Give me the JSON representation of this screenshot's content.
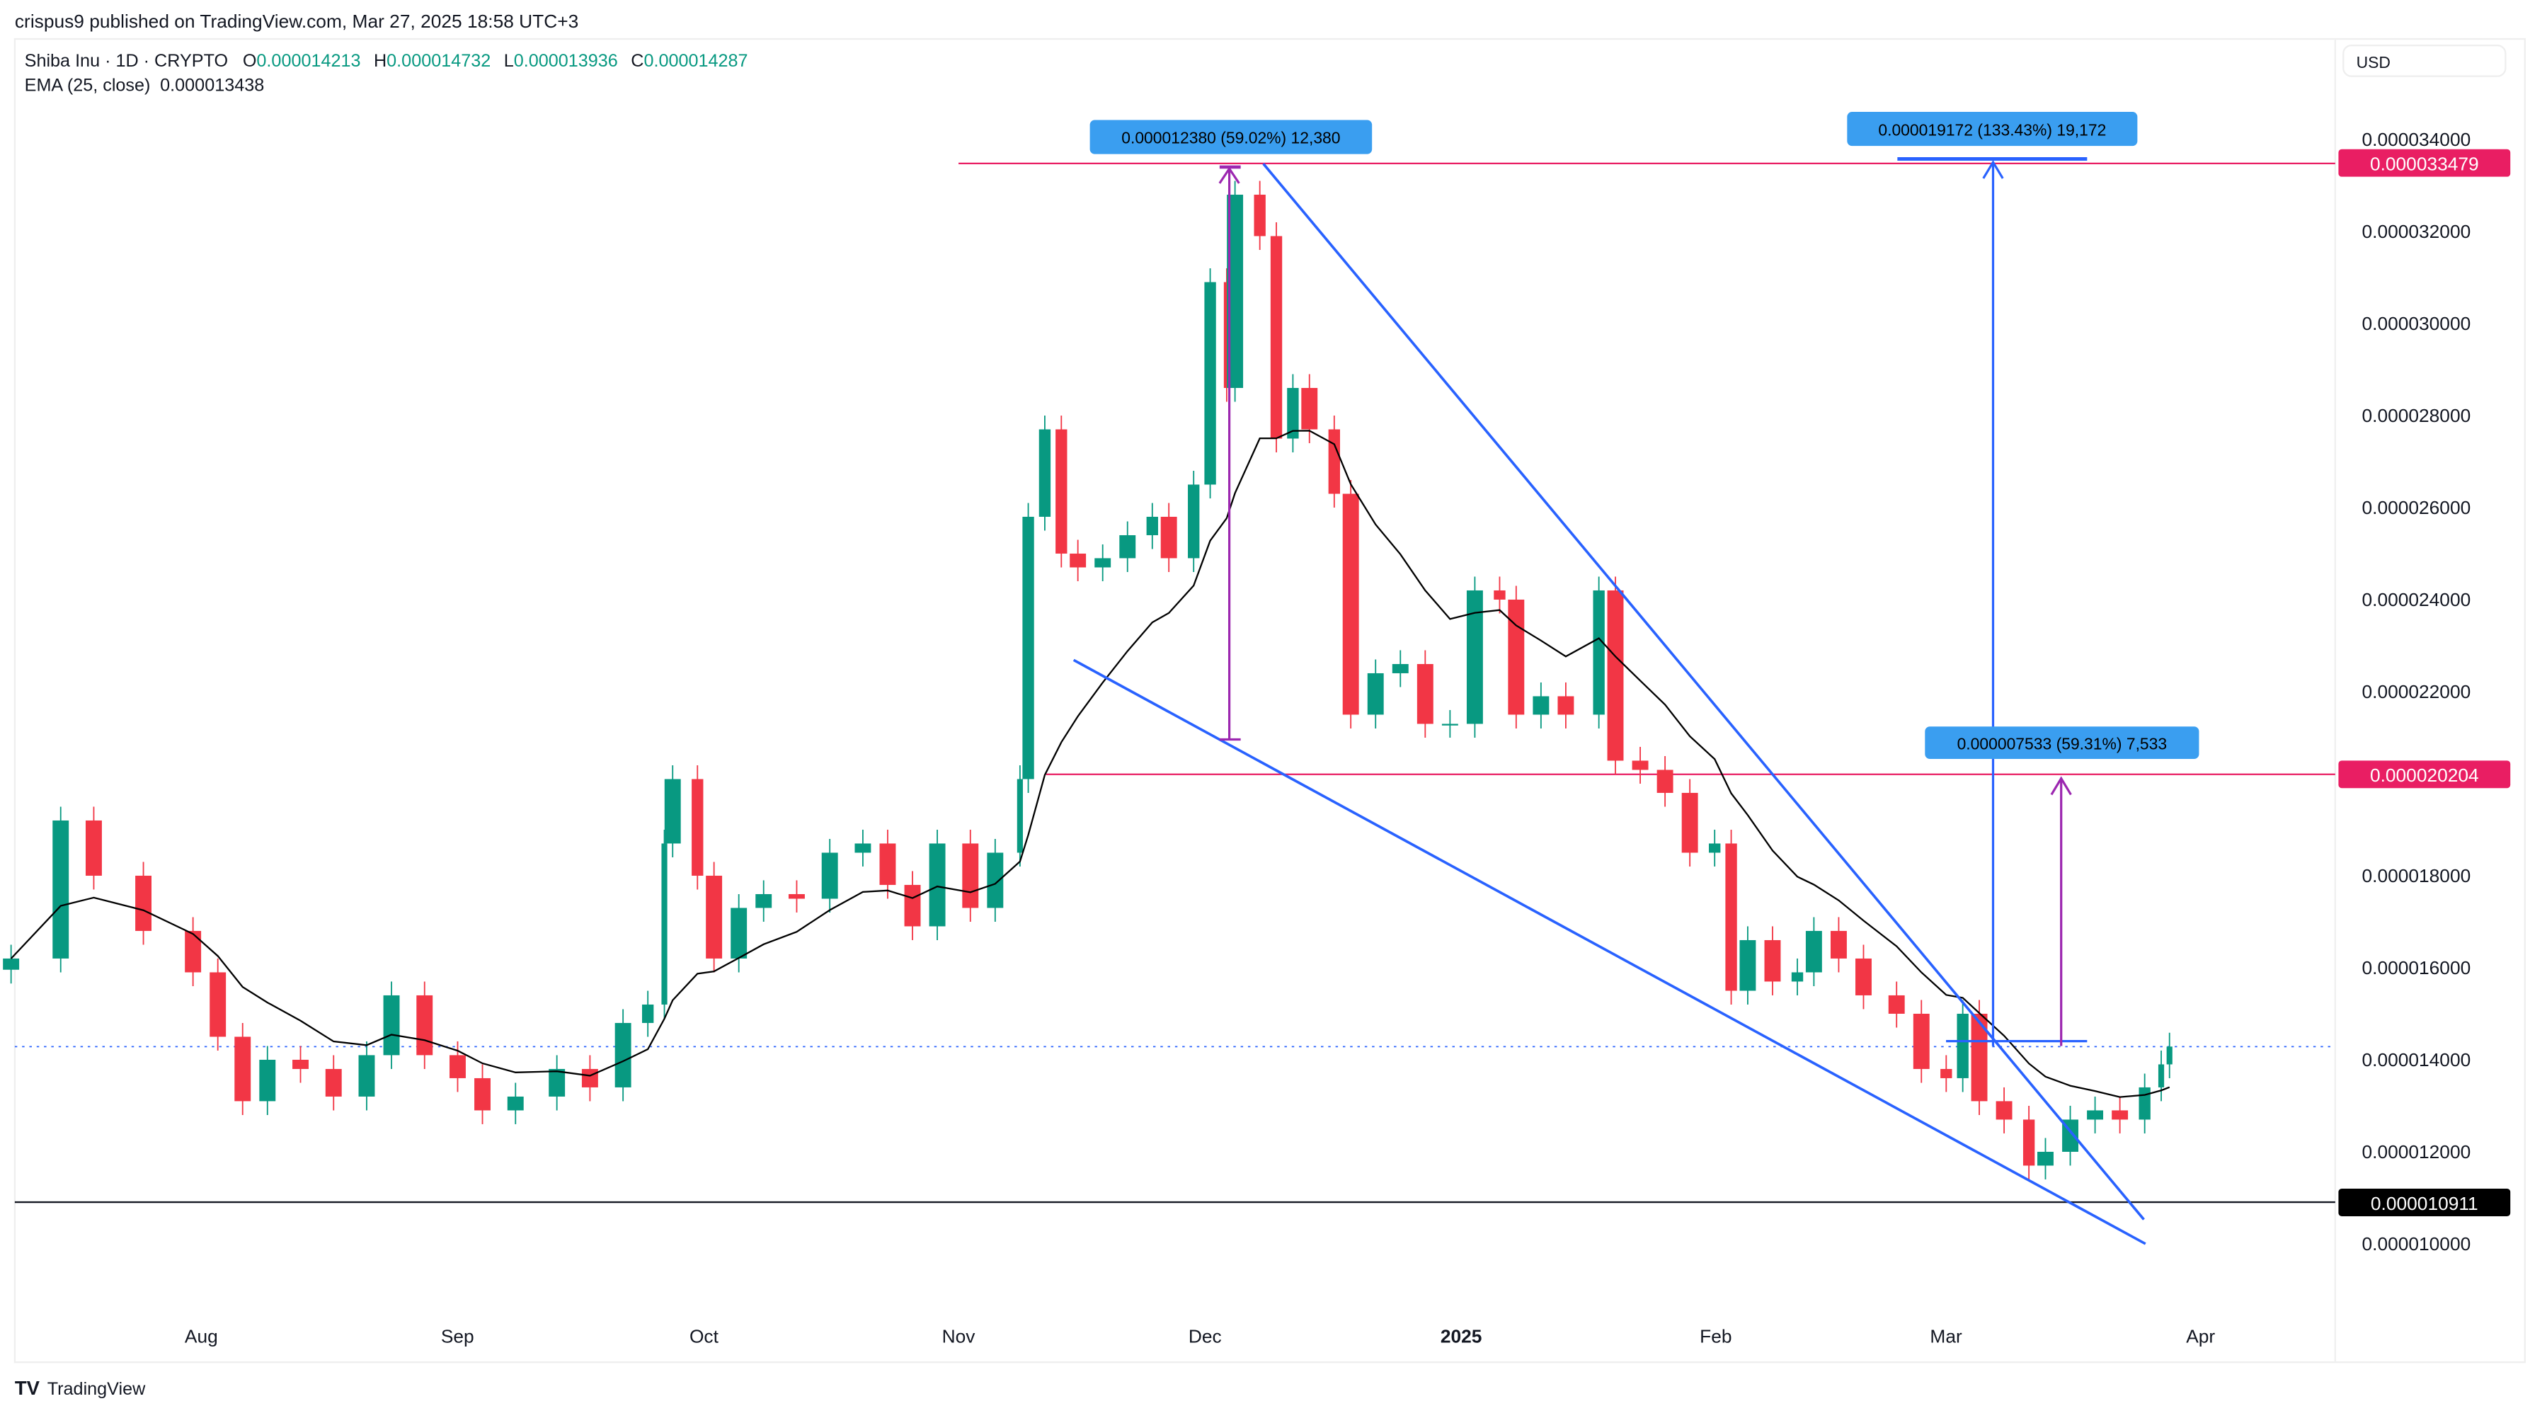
{
  "header": {
    "publisher_line": "crispus9 published on TradingView.com, Mar 27, 2025 18:58 UTC+3"
  },
  "legend": {
    "symbol": "Shiba Inu · 1D · CRYPTO",
    "open_label": "O",
    "open": "0.000014213",
    "high_label": "H",
    "high": "0.000014732",
    "low_label": "L",
    "low": "0.000013936",
    "close_label": "C",
    "close": "0.000014287",
    "ema_label": "EMA (25, close)",
    "ema_value": "0.000013438"
  },
  "currency_button": "USD",
  "footer": {
    "logo_text": "TradingView"
  },
  "colors": {
    "up": "#089981",
    "down": "#f23645",
    "level": "#e91e63",
    "trendline": "#2962ff",
    "measure_purple": "#9c27b0",
    "measure_label_bg": "#3a9ef0",
    "ema": "#000000"
  },
  "annotations": {
    "measure_1": "0.000012380 (59.02%) 12,380",
    "measure_2": "0.000019172 (133.43%) 19,172",
    "measure_3": "0.000007533 (59.31%) 7,533",
    "level_high": "0.000033479",
    "level_mid": "0.000020204",
    "level_low": "0.000010911"
  },
  "chart_data": {
    "type": "candlestick",
    "title": "Shiba Inu · 1D · CRYPTO",
    "ylabel": "USD",
    "ylim": [
      9.5e-06,
      3.47e-05
    ],
    "y_ticks": [
      "0.000034000",
      "0.000032000",
      "0.000030000",
      "0.000028000",
      "0.000026000",
      "0.000024000",
      "0.000022000",
      "0.000018000",
      "0.000016000",
      "0.000014000",
      "0.000012000",
      "0.000010000"
    ],
    "x_ticks": [
      "Aug",
      "Sep",
      "Oct",
      "Nov",
      "Dec",
      "2025",
      "Feb",
      "Mar",
      "Apr"
    ],
    "indicator": "EMA (25, close)",
    "horizontal_levels": [
      3.3479e-05,
      2.0204e-05,
      1.0911e-05
    ],
    "current_price": 1.4287e-05,
    "closes_e6": [
      [
        "2024-07-09",
        16.2
      ],
      [
        "2024-07-15",
        19.2
      ],
      [
        "2024-07-19",
        18.0
      ],
      [
        "2024-07-25",
        16.8
      ],
      [
        "2024-07-31",
        15.9
      ],
      [
        "2024-08-03",
        14.5
      ],
      [
        "2024-08-06",
        13.1
      ],
      [
        "2024-08-09",
        14.0
      ],
      [
        "2024-08-13",
        13.8
      ],
      [
        "2024-08-17",
        13.2
      ],
      [
        "2024-08-21",
        14.1
      ],
      [
        "2024-08-24",
        15.4
      ],
      [
        "2024-08-28",
        14.1
      ],
      [
        "2024-09-01",
        13.6
      ],
      [
        "2024-09-04",
        12.9
      ],
      [
        "2024-09-08",
        13.2
      ],
      [
        "2024-09-13",
        13.8
      ],
      [
        "2024-09-17",
        13.4
      ],
      [
        "2024-09-21",
        14.8
      ],
      [
        "2024-09-24",
        15.2
      ],
      [
        "2024-09-26",
        18.7
      ],
      [
        "2024-09-27",
        20.1
      ],
      [
        "2024-09-30",
        18.0
      ],
      [
        "2024-10-02",
        16.2
      ],
      [
        "2024-10-05",
        17.3
      ],
      [
        "2024-10-08",
        17.6
      ],
      [
        "2024-10-12",
        17.5
      ],
      [
        "2024-10-16",
        18.5
      ],
      [
        "2024-10-20",
        18.7
      ],
      [
        "2024-10-23",
        17.8
      ],
      [
        "2024-10-26",
        16.9
      ],
      [
        "2024-10-29",
        18.7
      ],
      [
        "2024-11-02",
        17.3
      ],
      [
        "2024-11-05",
        18.5
      ],
      [
        "2024-11-08",
        20.1
      ],
      [
        "2024-11-09",
        25.8
      ],
      [
        "2024-11-11",
        27.7
      ],
      [
        "2024-11-13",
        25.0
      ],
      [
        "2024-11-15",
        24.7
      ],
      [
        "2024-11-18",
        24.9
      ],
      [
        "2024-11-21",
        25.4
      ],
      [
        "2024-11-24",
        25.8
      ],
      [
        "2024-11-26",
        24.9
      ],
      [
        "2024-11-29",
        26.5
      ],
      [
        "2024-12-01",
        30.9
      ],
      [
        "2024-12-03",
        28.6
      ],
      [
        "2024-12-04",
        32.8
      ],
      [
        "2024-12-07",
        31.9
      ],
      [
        "2024-12-09",
        27.5
      ],
      [
        "2024-12-11",
        28.6
      ],
      [
        "2024-12-13",
        27.7
      ],
      [
        "2024-12-16",
        26.3
      ],
      [
        "2024-12-18",
        21.5
      ],
      [
        "2024-12-21",
        22.4
      ],
      [
        "2024-12-24",
        22.6
      ],
      [
        "2024-12-27",
        21.3
      ],
      [
        "2024-12-30",
        21.3
      ],
      [
        "2025-01-02",
        24.2
      ],
      [
        "2025-01-05",
        24.0
      ],
      [
        "2025-01-07",
        21.5
      ],
      [
        "2025-01-10",
        21.9
      ],
      [
        "2025-01-13",
        21.5
      ],
      [
        "2025-01-17",
        24.2
      ],
      [
        "2025-01-19",
        20.5
      ],
      [
        "2025-01-22",
        20.3
      ],
      [
        "2025-01-25",
        19.8
      ],
      [
        "2025-01-28",
        18.5
      ],
      [
        "2025-01-31",
        18.7
      ],
      [
        "2025-02-02",
        15.5
      ],
      [
        "2025-02-04",
        16.6
      ],
      [
        "2025-02-07",
        15.7
      ],
      [
        "2025-02-10",
        15.9
      ],
      [
        "2025-02-12",
        16.8
      ],
      [
        "2025-02-15",
        16.2
      ],
      [
        "2025-02-18",
        15.4
      ],
      [
        "2025-02-22",
        15.0
      ],
      [
        "2025-02-25",
        13.8
      ],
      [
        "2025-02-28",
        13.6
      ],
      [
        "2025-03-02",
        15.0
      ],
      [
        "2025-03-04",
        13.1
      ],
      [
        "2025-03-07",
        12.7
      ],
      [
        "2025-03-10",
        11.7
      ],
      [
        "2025-03-12",
        12.0
      ],
      [
        "2025-03-15",
        12.7
      ],
      [
        "2025-03-18",
        12.9
      ],
      [
        "2025-03-21",
        12.7
      ],
      [
        "2025-03-24",
        13.4
      ],
      [
        "2025-03-26",
        13.9
      ],
      [
        "2025-03-27",
        14.287
      ]
    ]
  }
}
